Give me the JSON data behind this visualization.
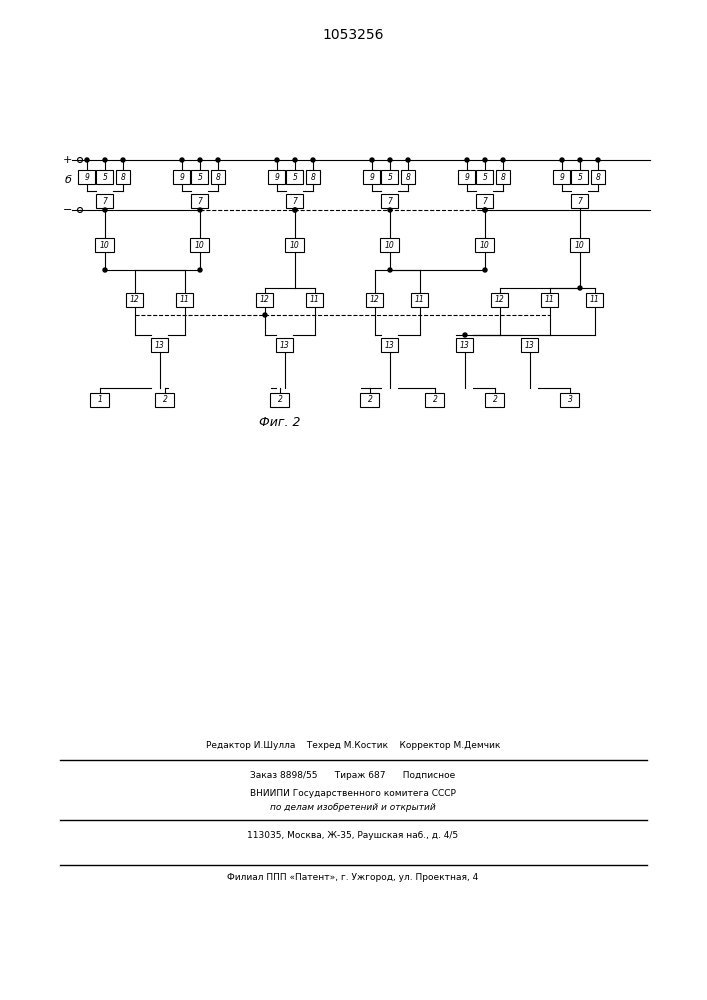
{
  "title": "1053256",
  "fig_label": "Фиг. 2",
  "bg_color": "#ffffff",
  "line_color": "#000000",
  "plus_label": "+",
  "minus_label": "−",
  "b_label": "б",
  "footer_line1": "Редактор И.Шулла    Техред М.Костик    Корректор М.Демчик",
  "footer_line2": "Заказ 8898/55      Тираж 687      Подписное",
  "footer_line3": "ВНИИПИ Государственного комитега СССР",
  "footer_line4": "по делам изобретений и открытий",
  "footer_line5": "113035, Москва, Ж-35, Раушская наб., д. 4/5",
  "footer_line6": "Филиал ППП «Патент», г. Ужгород, ул. Проектная, 4"
}
